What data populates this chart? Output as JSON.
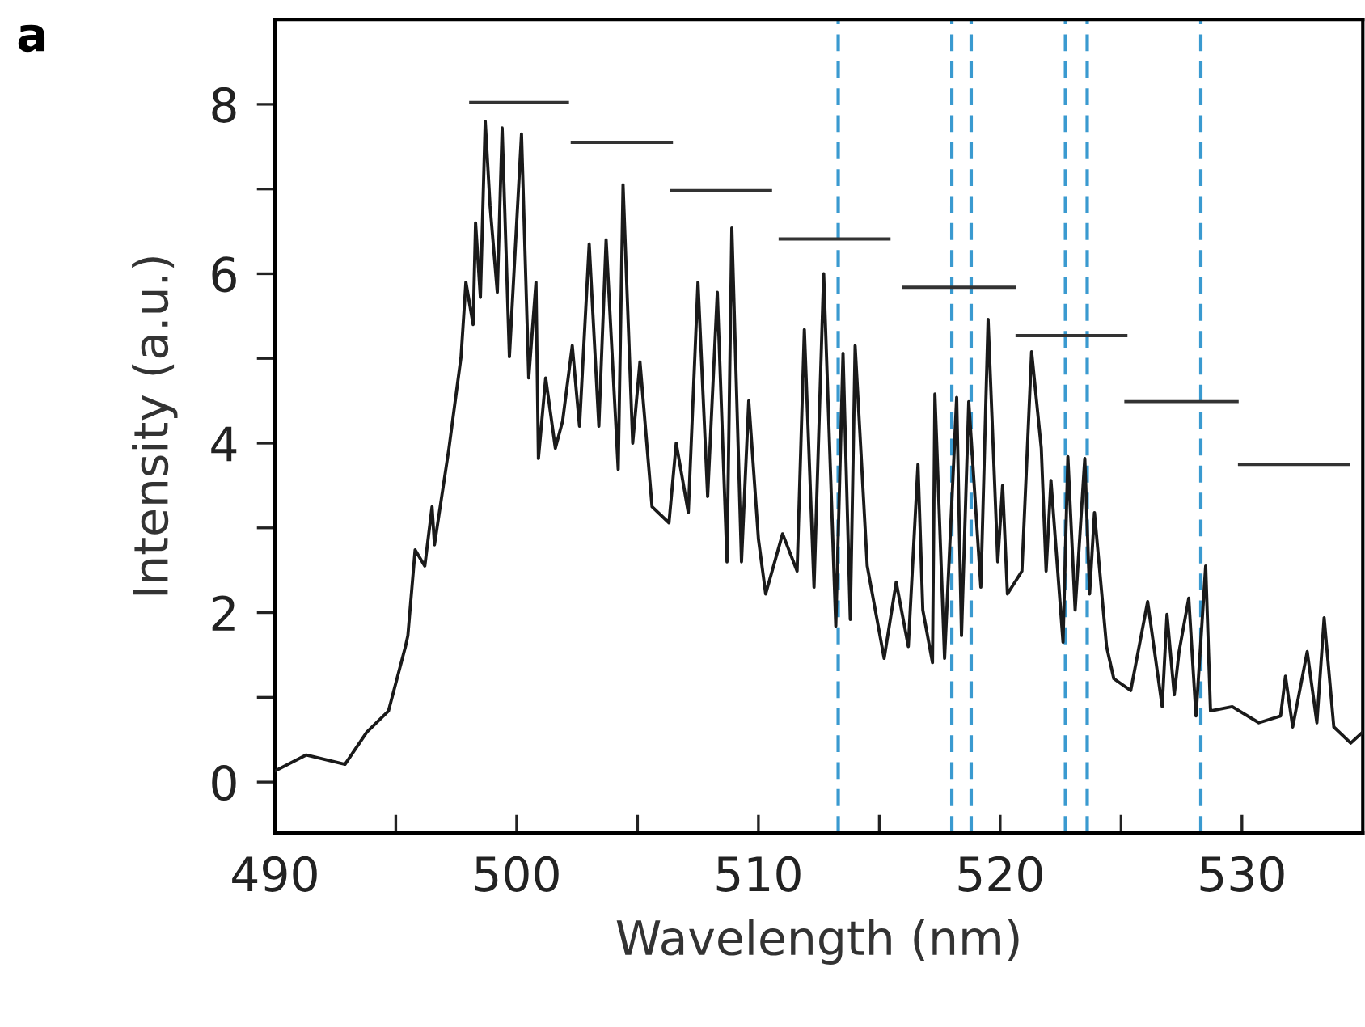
{
  "chart_data": {
    "type": "line",
    "xlabel": "Wavelength (nm)",
    "ylabel": "Intensity (a.u.)",
    "annotations": [
      "a"
    ],
    "xlim": [
      490,
      535
    ],
    "ylim": [
      -0.6,
      9
    ],
    "xticks": [
      490,
      {
        "value": 495,
        "label": null
      },
      500,
      {
        "value": 505,
        "label": null
      },
      510,
      {
        "value": 515,
        "label": null
      },
      520,
      {
        "value": 525,
        "label": null
      },
      530
    ],
    "yticks": [
      0,
      {
        "value": 1,
        "label": null
      },
      2,
      {
        "value": 3,
        "label": null
      },
      4,
      {
        "value": 5,
        "label": null
      },
      6,
      {
        "value": 7,
        "label": null
      },
      8
    ],
    "grid": false,
    "marker": "none",
    "line_style": "solid",
    "series": [
      {
        "color": "#1a1a1a",
        "x": [
          490,
          491.3,
          492.9,
          493.8,
          494.7,
          495.4,
          495.5,
          495.8,
          496.2,
          496.5,
          496.6,
          497.2,
          497.7,
          497.9,
          498.2,
          498.3,
          498.5,
          498.7,
          498.9,
          499.2,
          499.4,
          499.7,
          500.2,
          500.5,
          500.8,
          500.9,
          501.2,
          501.6,
          501.9,
          502.3,
          502.6,
          503.0,
          503.4,
          503.7,
          504.2,
          504.4,
          504.8,
          505.1,
          505.6,
          506.3,
          506.6,
          507.1,
          507.5,
          507.9,
          508.3,
          508.7,
          508.9,
          509.3,
          509.6,
          510.0,
          510.3,
          511.0,
          511.6,
          511.9,
          512.3,
          512.7,
          513.2,
          513.5,
          513.8,
          514.0,
          514.5,
          515.2,
          515.7,
          516.2,
          516.6,
          516.8,
          517.2,
          517.3,
          517.7,
          518.2,
          518.4,
          518.7,
          519.2,
          519.5,
          519.9,
          520.1,
          520.3,
          520.9,
          521.3,
          521.7,
          521.9,
          522.1,
          522.6,
          522.8,
          523.1,
          523.5,
          523.7,
          523.9,
          524.4,
          524.7,
          525.4,
          526.1,
          526.7,
          526.9,
          527.2,
          527.4,
          527.8,
          528.1,
          528.5,
          528.7,
          529.6,
          530.7,
          531.6,
          531.8,
          532.1,
          532.7,
          533.1,
          533.4,
          533.8,
          534.5,
          535
        ],
        "values": [
          0.13,
          0.32,
          0.21,
          0.59,
          0.84,
          1.6,
          1.73,
          2.74,
          2.55,
          3.25,
          2.8,
          3.94,
          5.02,
          5.9,
          5.4,
          6.6,
          5.72,
          7.8,
          6.8,
          5.78,
          7.72,
          5.02,
          7.65,
          4.77,
          5.9,
          3.82,
          4.77,
          3.94,
          4.26,
          5.15,
          4.2,
          6.35,
          4.2,
          6.4,
          3.69,
          7.05,
          4.0,
          4.96,
          3.25,
          3.06,
          4.0,
          3.18,
          5.9,
          3.37,
          5.78,
          2.6,
          6.54,
          2.6,
          4.5,
          2.87,
          2.22,
          2.93,
          2.49,
          5.34,
          2.3,
          6.0,
          1.84,
          5.06,
          1.92,
          5.15,
          2.55,
          1.46,
          2.36,
          1.6,
          3.75,
          2.03,
          1.41,
          4.58,
          1.46,
          4.54,
          1.73,
          4.49,
          2.3,
          5.46,
          2.6,
          3.5,
          2.22,
          2.49,
          5.08,
          3.94,
          2.49,
          3.56,
          1.65,
          3.84,
          2.03,
          3.82,
          2.22,
          3.18,
          1.6,
          1.22,
          1.08,
          2.13,
          0.89,
          1.98,
          1.03,
          1.54,
          2.17,
          0.78,
          2.55,
          0.84,
          0.89,
          0.7,
          0.78,
          1.25,
          0.65,
          1.54,
          0.7,
          1.94,
          0.65,
          0.46,
          0.59
        ]
      },
      {
        "color": "#333333",
        "x": [
          498.1,
          502.1
        ],
        "values": [
          8.02,
          8.02
        ]
      },
      {
        "color": "#333333",
        "x": [
          502.3,
          506.4
        ],
        "values": [
          7.55,
          7.55
        ]
      },
      {
        "color": "#333333",
        "x": [
          506.4,
          510.5
        ],
        "values": [
          6.98,
          6.98
        ]
      },
      {
        "color": "#333333",
        "x": [
          510.9,
          515.4
        ],
        "values": [
          6.41,
          6.41
        ]
      },
      {
        "color": "#333333",
        "x": [
          516.0,
          520.6
        ],
        "values": [
          5.84,
          5.84
        ]
      },
      {
        "color": "#333333",
        "x": [
          520.7,
          525.2
        ],
        "values": [
          5.27,
          5.27
        ]
      },
      {
        "color": "#333333",
        "x": [
          525.2,
          529.8
        ],
        "values": [
          4.49,
          4.49
        ]
      },
      {
        "color": "#333333",
        "x": [
          529.9,
          534.4
        ],
        "values": [
          3.75,
          3.75
        ]
      }
    ],
    "ref_lines": [
      {
        "axis": "x",
        "value": 513.3,
        "color": "#3a9ad0",
        "line_style": "dashed"
      },
      {
        "axis": "x",
        "value": 518.0,
        "color": "#3a9ad0",
        "line_style": "dashed"
      },
      {
        "axis": "x",
        "value": 518.8,
        "color": "#3a9ad0",
        "line_style": "dashed"
      },
      {
        "axis": "x",
        "value": 522.7,
        "color": "#3a9ad0",
        "line_style": "dashed"
      },
      {
        "axis": "x",
        "value": 523.6,
        "color": "#3a9ad0",
        "line_style": "dashed"
      },
      {
        "axis": "x",
        "value": 528.3,
        "color": "#3a9ad0",
        "line_style": "dashed"
      }
    ]
  }
}
